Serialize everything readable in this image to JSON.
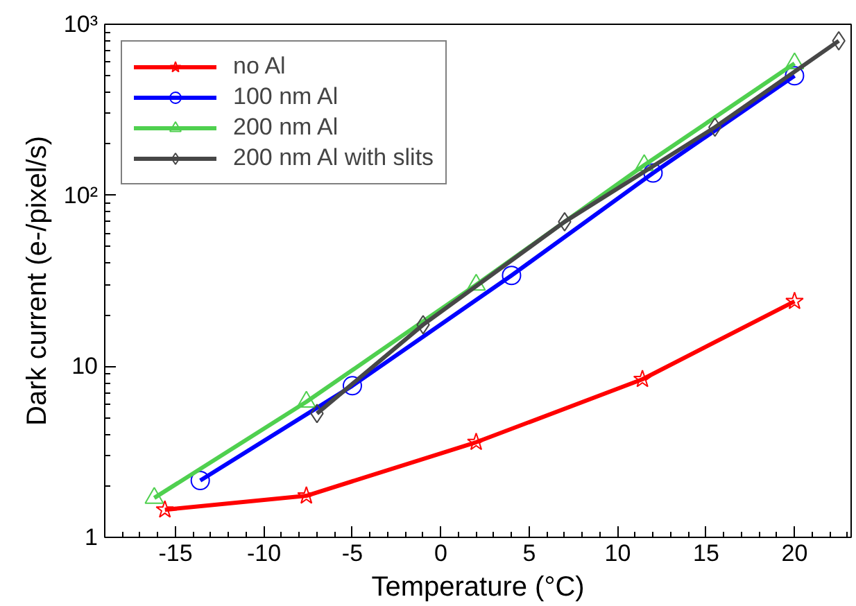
{
  "chart_data": {
    "type": "line",
    "xlabel": "Temperature (°C)",
    "ylabel": "Dark current (e-/pixel/s)",
    "log": "y",
    "grid": false,
    "legend": "top left",
    "line_style": "solid",
    "xlim": [
      -19,
      23.2
    ],
    "ylim": [
      1,
      1000
    ],
    "xticks": [
      -15,
      -10,
      -5,
      0,
      5,
      10,
      15,
      20
    ],
    "yticks": [
      1,
      10,
      {
        "value": 100,
        "label": "10²"
      },
      {
        "value": 1000,
        "label": "10³"
      }
    ],
    "series": [
      {
        "name": "no Al",
        "color": "#ff0000",
        "marker": "star",
        "x": [
          -15.6,
          -7.6,
          2,
          11.4,
          20
        ],
        "values": [
          1.45,
          1.75,
          3.6,
          8.4,
          24
        ]
      },
      {
        "name": "100 nm Al",
        "color": "#0000ff",
        "marker": "circle",
        "x": [
          -13.6,
          -5,
          4,
          12,
          20
        ],
        "values": [
          2.15,
          7.7,
          34,
          135,
          500
        ]
      },
      {
        "name": "200 nm Al",
        "color": "#4fd04f",
        "marker": "triangle",
        "x": [
          -16.2,
          -7.6,
          2,
          11.5,
          20
        ],
        "values": [
          1.7,
          6.2,
          30,
          150,
          590
        ]
      },
      {
        "name": "200 nm Al with slits",
        "color": "#474747",
        "marker": "diamond",
        "x": [
          -7,
          -1,
          7,
          15.5,
          22.5
        ],
        "values": [
          5.3,
          17.5,
          70,
          250,
          800
        ]
      }
    ]
  }
}
